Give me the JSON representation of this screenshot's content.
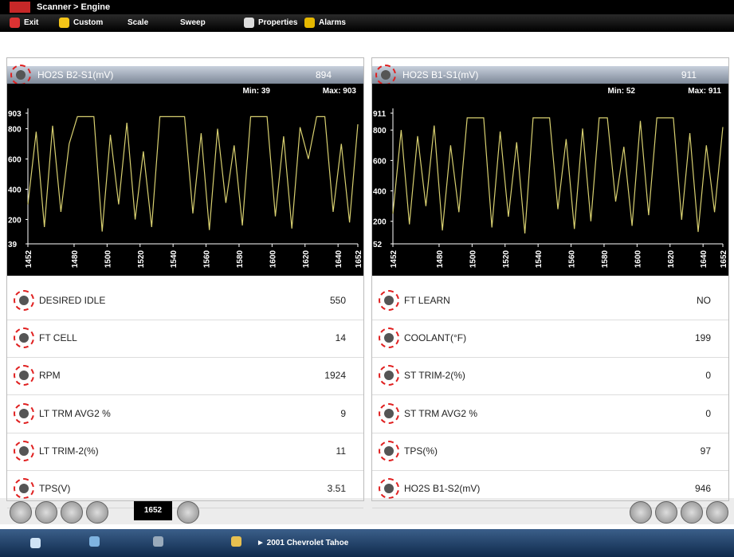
{
  "header": {
    "title": "Scanner",
    "breadcrumb": "> Engine"
  },
  "toolbar": [
    "Exit",
    "Custom",
    "Scale",
    "Sweep",
    "Properties",
    "Alarms"
  ],
  "graphs": [
    {
      "name": "HO2S B2-S1(mV)",
      "value": "894",
      "min_label": "Min: 39",
      "max_label": "Max: 903",
      "ylim": [
        39,
        903
      ],
      "yticks": [
        903,
        800,
        600,
        400,
        200,
        39
      ],
      "xlim": [
        1452,
        1652
      ],
      "xticks": [
        1452,
        1480,
        1500,
        1520,
        1540,
        1560,
        1580,
        1600,
        1620,
        1640,
        1652
      ],
      "trace_x": [
        1452,
        1457,
        1462,
        1467,
        1472,
        1477,
        1482,
        1487,
        1492,
        1497,
        1502,
        1507,
        1512,
        1517,
        1522,
        1527,
        1532,
        1537,
        1542,
        1547,
        1552,
        1557,
        1562,
        1567,
        1572,
        1577,
        1582,
        1587,
        1592,
        1597,
        1602,
        1607,
        1612,
        1617,
        1622,
        1627,
        1632,
        1637,
        1642,
        1647,
        1652
      ],
      "trace": [
        300,
        780,
        150,
        820,
        250,
        700,
        880,
        880,
        880,
        120,
        760,
        300,
        840,
        200,
        650,
        150,
        880,
        880,
        880,
        880,
        240,
        770,
        130,
        800,
        310,
        690,
        160,
        880,
        880,
        880,
        220,
        750,
        140,
        810,
        600,
        880,
        880,
        250,
        700,
        180,
        830
      ]
    },
    {
      "name": "HO2S B1-S1(mV)",
      "value": "911",
      "min_label": "Min: 52",
      "max_label": "Max: 911",
      "ylim": [
        52,
        911
      ],
      "yticks": [
        911,
        800,
        600,
        400,
        200,
        52
      ],
      "xlim": [
        1452,
        1652
      ],
      "xticks": [
        1452,
        1480,
        1500,
        1520,
        1540,
        1560,
        1580,
        1600,
        1620,
        1640,
        1652
      ],
      "trace_x": [
        1452,
        1457,
        1462,
        1467,
        1472,
        1477,
        1482,
        1487,
        1492,
        1497,
        1502,
        1507,
        1512,
        1517,
        1522,
        1527,
        1532,
        1537,
        1542,
        1547,
        1552,
        1557,
        1562,
        1567,
        1572,
        1577,
        1582,
        1587,
        1592,
        1597,
        1602,
        1607,
        1612,
        1617,
        1622,
        1627,
        1632,
        1637,
        1642,
        1647,
        1652
      ],
      "trace": [
        250,
        800,
        180,
        760,
        300,
        830,
        140,
        700,
        260,
        880,
        880,
        880,
        160,
        790,
        230,
        720,
        120,
        880,
        880,
        880,
        280,
        740,
        150,
        810,
        200,
        880,
        880,
        330,
        690,
        170,
        860,
        240,
        880,
        880,
        880,
        210,
        780,
        130,
        700,
        260,
        820
      ]
    }
  ],
  "rows": [
    [
      {
        "label": "DESIRED IDLE",
        "value": "550"
      },
      {
        "label": "FT LEARN",
        "value": "NO"
      }
    ],
    [
      {
        "label": "FT CELL",
        "value": "14"
      },
      {
        "label": "COOLANT(°F)",
        "value": "199"
      }
    ],
    [
      {
        "label": "RPM",
        "value": "1924"
      },
      {
        "label": "ST TRIM-2(%)",
        "value": "0"
      }
    ],
    [
      {
        "label": "LT TRM AVG2 %",
        "value": "9"
      },
      {
        "label": "ST TRM AVG2 %",
        "value": "0"
      }
    ],
    [
      {
        "label": "LT TRIM-2(%)",
        "value": "11"
      },
      {
        "label": "TPS(%)",
        "value": "97"
      }
    ],
    [
      {
        "label": "TPS(V)",
        "value": "3.51"
      },
      {
        "label": "HO2S B1-S2(mV)",
        "value": "946"
      }
    ]
  ],
  "bottom": {
    "counter": "1652"
  },
  "taskbar": {
    "vehicle": "► 2001 Chevrolet Tahoe"
  }
}
